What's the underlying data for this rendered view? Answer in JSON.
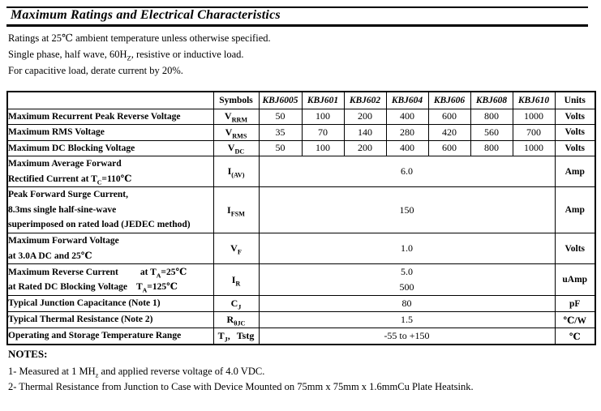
{
  "colors": {
    "text": "#000000",
    "border": "#000000",
    "background": "#ffffff"
  },
  "header": {
    "title": "Maximum Ratings and Electrical Characteristics"
  },
  "intro": [
    {
      "parts": [
        {
          "t": "Ratings at 25℃ ambient temperature unless otherwise specified."
        }
      ]
    },
    {
      "parts": [
        {
          "t": "Single phase, half wave, 60H"
        },
        {
          "t": "Z",
          "sub": true
        },
        {
          "t": ", resistive or inductive load."
        }
      ]
    },
    {
      "parts": [
        {
          "t": "For capacitive load, derate current by 20%."
        }
      ]
    }
  ],
  "table": {
    "headers": [
      "",
      "Symbols",
      "KBJ6005",
      "KBJ601",
      "KBJ602",
      "KBJ604",
      "KBJ606",
      "KBJ608",
      "KBJ610",
      "Units"
    ],
    "rows": [
      {
        "label_lines": [
          [
            {
              "t": "Maximum Recurrent Peak Reverse Voltage"
            }
          ]
        ],
        "symbol": [
          {
            "t": "V"
          },
          {
            "t": "RRM",
            "sub": true
          }
        ],
        "values": [
          "50",
          "100",
          "200",
          "400",
          "600",
          "800",
          "1000"
        ],
        "unit": "Volts"
      },
      {
        "label_lines": [
          [
            {
              "t": "Maximum RMS Voltage"
            }
          ]
        ],
        "symbol": [
          {
            "t": "V"
          },
          {
            "t": "RMS",
            "sub": true
          }
        ],
        "values": [
          "35",
          "70",
          "140",
          "280",
          "420",
          "560",
          "700"
        ],
        "unit": "Volts"
      },
      {
        "label_lines": [
          [
            {
              "t": "Maximum DC Blocking Voltage"
            }
          ]
        ],
        "symbol": [
          {
            "t": "V"
          },
          {
            "t": "DC",
            "sub": true
          }
        ],
        "values": [
          "50",
          "100",
          "200",
          "400",
          "600",
          "800",
          "1000"
        ],
        "unit": "Volts"
      },
      {
        "label_lines": [
          [
            {
              "t": "Maximum Average Forward"
            }
          ],
          [
            {
              "t": "Rectified Current at T"
            },
            {
              "t": "C",
              "sub": true
            },
            {
              "t": "=110℃"
            }
          ]
        ],
        "symbol": [
          {
            "t": "I"
          },
          {
            "t": "(AV)",
            "sub": true
          }
        ],
        "span_value": [
          "6.0"
        ],
        "unit": "Amp"
      },
      {
        "label_lines": [
          [
            {
              "t": "Peak Forward Surge Current,"
            }
          ],
          [
            {
              "t": "8.3ms single half-sine-wave"
            }
          ],
          [
            {
              "t": "superimposed on rated load (JEDEC method)"
            }
          ]
        ],
        "symbol": [
          {
            "t": "I"
          },
          {
            "t": "FSM",
            "sub": true
          }
        ],
        "span_value": [
          "150"
        ],
        "unit": "Amp"
      },
      {
        "label_lines": [
          [
            {
              "t": "Maximum Forward Voltage"
            }
          ],
          [
            {
              "t": "at 3.0A DC and 25℃"
            }
          ]
        ],
        "symbol": [
          {
            "t": "V"
          },
          {
            "t": "F",
            "sub": true
          }
        ],
        "span_value": [
          "1.0"
        ],
        "unit": "Volts"
      },
      {
        "label_lines": [
          [
            {
              "t": "Maximum Reverse Current"
            },
            {
              "t": "at T",
              "ml": 27
            },
            {
              "t": "A",
              "sub": true
            },
            {
              "t": "=25℃"
            }
          ],
          [
            {
              "t": "at Rated DC Blocking Voltage"
            },
            {
              "t": "T",
              "ml": 11
            },
            {
              "t": "A",
              "sub": true
            },
            {
              "t": "=125℃"
            }
          ]
        ],
        "symbol": [
          {
            "t": "I"
          },
          {
            "t": "R",
            "sub": true
          }
        ],
        "span_value": [
          "5.0",
          "500"
        ],
        "unit": "uAmp"
      },
      {
        "label_lines": [
          [
            {
              "t": "Typical Junction Capacitance (Note 1)"
            }
          ]
        ],
        "symbol": [
          {
            "t": "C"
          },
          {
            "t": "J",
            "sub": true
          }
        ],
        "span_value": [
          "80"
        ],
        "unit": "pF"
      },
      {
        "label_lines": [
          [
            {
              "t": "Typical Thermal Resistance (Note 2)"
            }
          ]
        ],
        "symbol": [
          {
            "t": "R"
          },
          {
            "t": "θJC",
            "sub": true
          }
        ],
        "span_value": [
          "1.5"
        ],
        "unit": "℃/W"
      },
      {
        "label_lines": [
          [
            {
              "t": "Operating and Storage Temperature Range"
            }
          ]
        ],
        "symbol": [
          {
            "t": "T"
          },
          {
            "t": "J",
            "sub": true
          },
          {
            "t": ","
          },
          {
            "t": "Tstg",
            "ml": 8
          }
        ],
        "span_value": [
          "-55 to +150"
        ],
        "unit": "℃"
      }
    ]
  },
  "notes": {
    "heading": "NOTES:",
    "items": [
      {
        "parts": [
          {
            "t": "1- Measured at 1 MH"
          },
          {
            "t": "z",
            "sub": true
          },
          {
            "t": " and applied reverse voltage of 4.0 VDC."
          }
        ]
      },
      {
        "parts": [
          {
            "t": "2- Thermal Resistance from Junction to Case with Device Mounted on 75mm x 75mm x 1.6mmCu Plate Heatsink."
          }
        ]
      }
    ]
  }
}
